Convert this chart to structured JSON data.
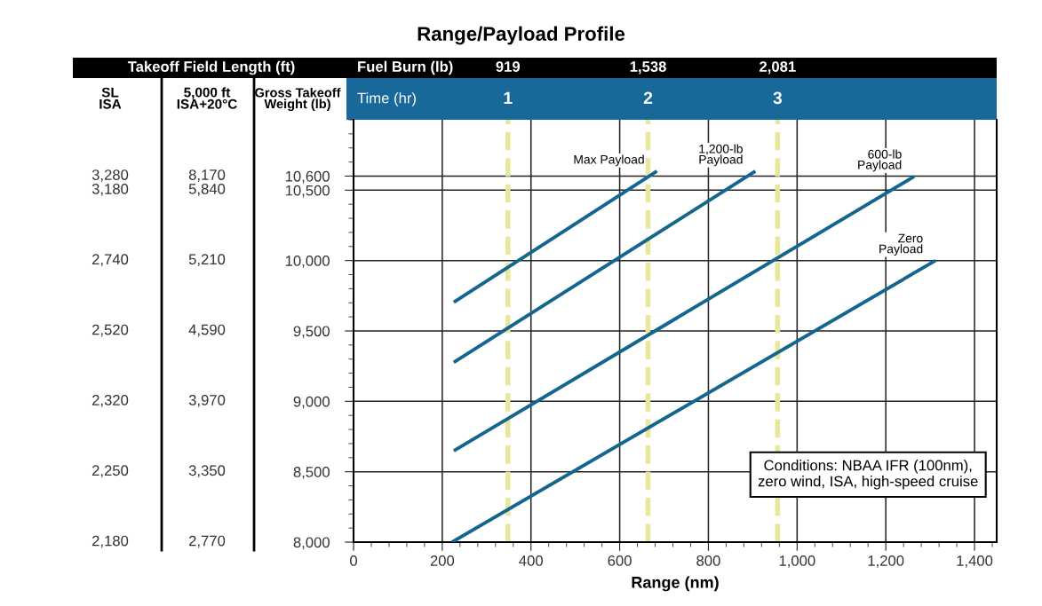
{
  "chart_data": {
    "type": "line",
    "title": "Range/Payload Profile",
    "xlabel": "Range (nm)",
    "ylabel": "Gross Takeoff\nWeight (lb)",
    "xlim": [
      0,
      1450
    ],
    "xticks": [
      0,
      {
        "value": 200,
        "label": "200"
      },
      {
        "value": 400,
        "label": "400"
      },
      {
        "value": 600,
        "label": "600"
      },
      {
        "value": 800,
        "label": "800"
      },
      {
        "value": 1000,
        "label": "1,000"
      },
      {
        "value": 1200,
        "label": "1,200"
      },
      {
        "value": 1400,
        "label": "1,400"
      }
    ],
    "ylim": [
      8000,
      11000
    ],
    "yticks": [
      {
        "value": 8000,
        "label": "8,000"
      },
      {
        "value": 8500,
        "label": "8,500"
      },
      {
        "value": 9000,
        "label": "9,000"
      },
      {
        "value": 9500,
        "label": "9,500"
      },
      {
        "value": 10000,
        "label": "10,000"
      },
      {
        "value": 10500,
        "label": "10,500"
      },
      {
        "value": 10600,
        "label": "10,600"
      }
    ],
    "grid": true,
    "marker": "none",
    "line_style": "solid",
    "ref_lines": [
      {
        "axis": "x",
        "value": 348,
        "color": "#e9e79c",
        "line_style": "dashed"
      },
      {
        "axis": "x",
        "value": 664,
        "color": "#e9e79c",
        "line_style": "dashed"
      },
      {
        "axis": "x",
        "value": 956,
        "color": "#e9e79c",
        "line_style": "dashed"
      }
    ],
    "series": [
      {
        "name": "Max Payload",
        "color": "#14668f",
        "x": [
          226,
          684
        ],
        "values": [
          9704,
          10635
        ]
      },
      {
        "name": "1,200-lb\nPayload",
        "color": "#14668f",
        "x": [
          226,
          906
        ],
        "values": [
          9277,
          10635
        ]
      },
      {
        "name": "600-lb\nPayload",
        "color": "#14668f",
        "x": [
          226,
          1264
        ],
        "values": [
          8648,
          10597
        ]
      },
      {
        "name": "Zero\nPayload",
        "color": "#14668f",
        "x": [
          222,
          1312
        ],
        "values": [
          8000,
          10000
        ]
      }
    ],
    "annotations": [
      "Takeoff Field Length (ft)",
      "SL\nISA",
      "5,000 ft\nISA+20°C",
      "Fuel Burn (lb)",
      "Time (hr)",
      "Conditions: NBAA IFR (100nm),\nzero wind, ISA, high-speed cruise",
      "919",
      "1,538",
      "2,081",
      "1",
      "2",
      "3",
      "2,180",
      "2,250",
      "2,320",
      "2,520",
      "2,740",
      "3,180",
      "3,280",
      "2,770",
      "3,350",
      "3,970",
      "4,590",
      "5,210",
      "5,840",
      "8,170"
    ]
  }
}
